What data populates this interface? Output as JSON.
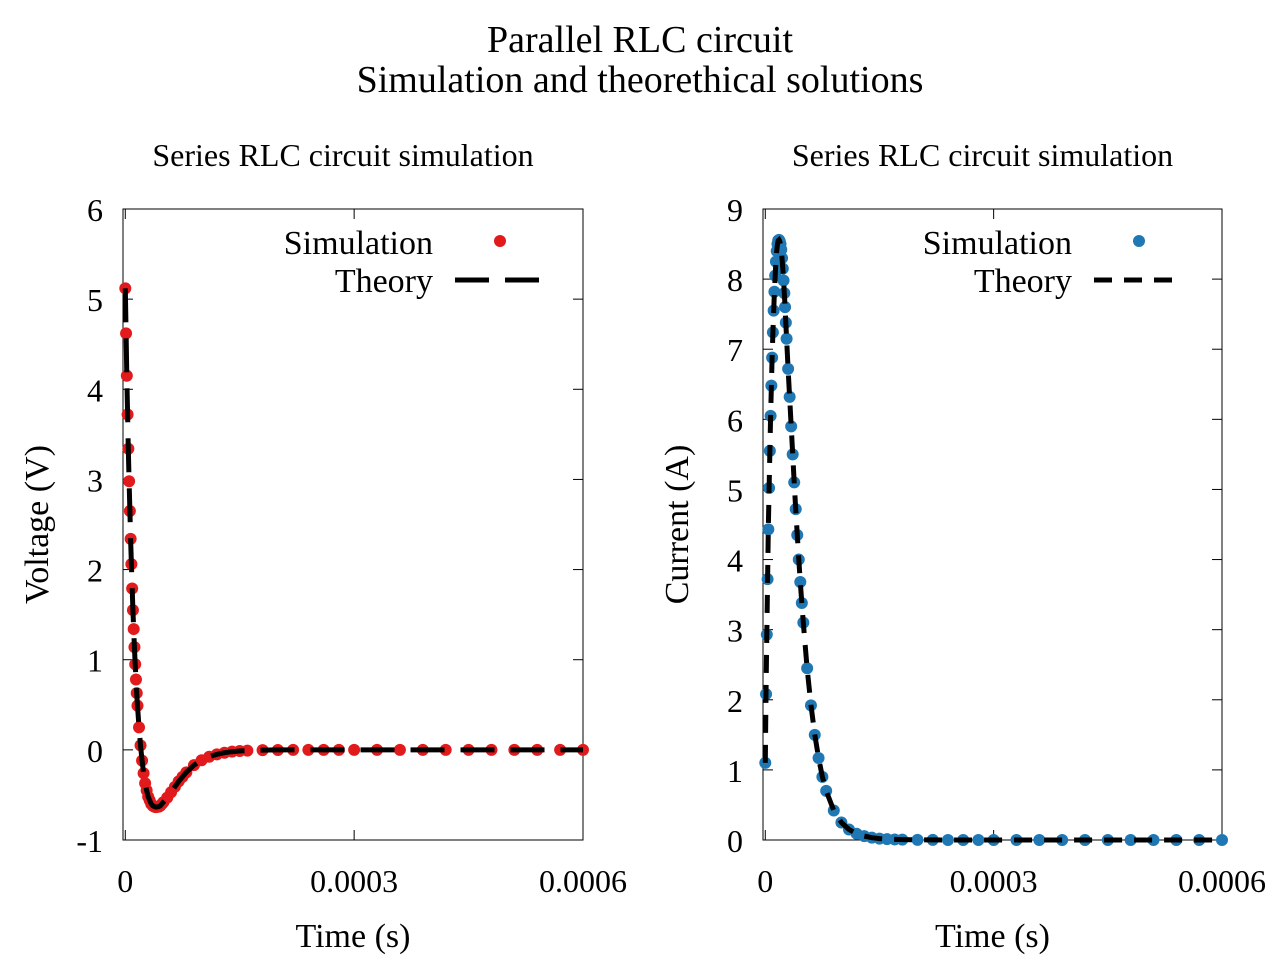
{
  "figure": {
    "title_line1": "Parallel RLC circuit",
    "title_line2": "Simulation and theorethical solutions"
  },
  "chart_data": [
    {
      "type": "line",
      "title": "Series RLC circuit simulation",
      "xlabel": "Time (s)",
      "ylabel": "Voltage (V)",
      "xlim": [
        -3e-06,
        0.0006
      ],
      "ylim": [
        -1,
        6
      ],
      "xticks": [
        0,
        0.0003,
        0.0006
      ],
      "xtick_labels": [
        "0",
        "0.0003",
        "0.0006"
      ],
      "yticks": [
        -1,
        0,
        1,
        2,
        3,
        4,
        5,
        6
      ],
      "ytick_labels": [
        "-1",
        "0",
        "1",
        "2",
        "3",
        "4",
        "5",
        "6"
      ],
      "grid": false,
      "legend_position": "top-right",
      "series": [
        {
          "name": "Simulation",
          "style": "points",
          "color": "#e31a1c",
          "x": [
            0,
            1e-06,
            2e-06,
            3e-06,
            4e-06,
            5e-06,
            6e-06,
            7e-06,
            8e-06,
            9e-06,
            1e-05,
            1.1e-05,
            1.2e-05,
            1.3e-05,
            1.4e-05,
            1.5e-05,
            1.6e-05,
            1.8e-05,
            2e-05,
            2.2e-05,
            2.4e-05,
            2.6e-05,
            2.8e-05,
            3e-05,
            3.2e-05,
            3.4e-05,
            3.6e-05,
            3.8e-05,
            4e-05,
            4.2e-05,
            4.4e-05,
            4.6e-05,
            4.8e-05,
            5e-05,
            5.5e-05,
            6e-05,
            6.5e-05,
            7e-05,
            7.5e-05,
            8e-05,
            9e-05,
            0.0001,
            0.00011,
            0.00012,
            0.00013,
            0.00014,
            0.00015,
            0.00016,
            0.00018,
            0.0002,
            0.00022,
            0.00024,
            0.00026,
            0.00028,
            0.0003,
            0.00033,
            0.00036,
            0.00039,
            0.00042,
            0.00045,
            0.00048,
            0.00051,
            0.00054,
            0.00057,
            0.0006
          ],
          "y": [
            5.12,
            4.62,
            4.15,
            3.72,
            3.34,
            2.98,
            2.65,
            2.34,
            2.06,
            1.79,
            1.55,
            1.34,
            1.14,
            0.95,
            0.78,
            0.63,
            0.49,
            0.25,
            0.05,
            -0.12,
            -0.26,
            -0.37,
            -0.45,
            -0.52,
            -0.56,
            -0.6,
            -0.62,
            -0.63,
            -0.635,
            -0.633,
            -0.63,
            -0.62,
            -0.6,
            -0.58,
            -0.53,
            -0.47,
            -0.41,
            -0.35,
            -0.3,
            -0.25,
            -0.17,
            -0.115,
            -0.076,
            -0.05,
            -0.032,
            -0.02,
            -0.013,
            -0.008,
            -0.003,
            -0.001,
            0,
            0,
            0,
            0,
            0,
            0,
            0,
            0,
            0,
            0,
            0,
            0,
            0,
            0,
            0
          ]
        },
        {
          "name": "Theory",
          "style": "dashed-line",
          "color": "#000000",
          "x": [
            0,
            1e-06,
            2e-06,
            3e-06,
            4e-06,
            5e-06,
            6e-06,
            7e-06,
            8e-06,
            9e-06,
            1e-05,
            1.1e-05,
            1.2e-05,
            1.3e-05,
            1.4e-05,
            1.5e-05,
            1.6e-05,
            1.8e-05,
            2e-05,
            2.2e-05,
            2.4e-05,
            2.6e-05,
            2.8e-05,
            3e-05,
            3.2e-05,
            3.4e-05,
            3.6e-05,
            3.8e-05,
            4e-05,
            4.2e-05,
            4.4e-05,
            4.6e-05,
            4.8e-05,
            5e-05,
            5.5e-05,
            6e-05,
            6.5e-05,
            7e-05,
            7.5e-05,
            8e-05,
            9e-05,
            0.0001,
            0.00011,
            0.00012,
            0.00013,
            0.00014,
            0.00015,
            0.00016,
            0.00018,
            0.0002,
            0.00022,
            0.00024,
            0.00026,
            0.00028,
            0.0003,
            0.00033,
            0.00036,
            0.00039,
            0.00042,
            0.00045,
            0.00048,
            0.00051,
            0.00054,
            0.00057,
            0.0006
          ],
          "y": [
            5.12,
            4.62,
            4.15,
            3.72,
            3.34,
            2.98,
            2.65,
            2.34,
            2.06,
            1.79,
            1.55,
            1.34,
            1.14,
            0.95,
            0.78,
            0.63,
            0.49,
            0.25,
            0.05,
            -0.12,
            -0.26,
            -0.37,
            -0.45,
            -0.52,
            -0.56,
            -0.6,
            -0.62,
            -0.63,
            -0.635,
            -0.633,
            -0.63,
            -0.62,
            -0.6,
            -0.58,
            -0.53,
            -0.47,
            -0.41,
            -0.35,
            -0.3,
            -0.25,
            -0.17,
            -0.115,
            -0.076,
            -0.05,
            -0.032,
            -0.02,
            -0.013,
            -0.008,
            -0.003,
            -0.001,
            0,
            0,
            0,
            0,
            0,
            0,
            0,
            0,
            0,
            0,
            0,
            0,
            0,
            0,
            0
          ]
        }
      ]
    },
    {
      "type": "line",
      "title": "Series RLC circuit simulation",
      "xlabel": "Time (s)",
      "ylabel": "Current (A)",
      "xlim": [
        -3e-06,
        0.0006
      ],
      "ylim": [
        0,
        9
      ],
      "xticks": [
        0,
        0.0003,
        0.0006
      ],
      "xtick_labels": [
        "0",
        "0.0003",
        "0.0006"
      ],
      "yticks": [
        0,
        1,
        2,
        3,
        4,
        5,
        6,
        7,
        8,
        9
      ],
      "ytick_labels": [
        "0",
        "1",
        "2",
        "3",
        "4",
        "5",
        "6",
        "7",
        "8",
        "9"
      ],
      "grid": false,
      "legend_position": "top-right",
      "series": [
        {
          "name": "Simulation",
          "style": "points",
          "color": "#1f78b4",
          "x": [
            0,
            1e-06,
            2e-06,
            3e-06,
            4e-06,
            5e-06,
            6e-06,
            7e-06,
            8e-06,
            9e-06,
            1e-05,
            1.1e-05,
            1.2e-05,
            1.3e-05,
            1.4e-05,
            1.5e-05,
            1.6e-05,
            1.7e-05,
            1.8e-05,
            1.9e-05,
            2e-05,
            2.1e-05,
            2.2e-05,
            2.3e-05,
            2.4e-05,
            2.5e-05,
            2.6e-05,
            2.7e-05,
            2.8e-05,
            3e-05,
            3.2e-05,
            3.4e-05,
            3.6e-05,
            3.8e-05,
            4e-05,
            4.2e-05,
            4.4e-05,
            4.6e-05,
            4.8e-05,
            5e-05,
            5.5e-05,
            6e-05,
            6.5e-05,
            7e-05,
            7.5e-05,
            8e-05,
            9e-05,
            0.0001,
            0.00011,
            0.00012,
            0.00013,
            0.00014,
            0.00015,
            0.00016,
            0.00017,
            0.00018,
            0.0002,
            0.00022,
            0.00024,
            0.00026,
            0.00028,
            0.0003,
            0.00033,
            0.00036,
            0.00039,
            0.00042,
            0.00045,
            0.00048,
            0.00051,
            0.00054,
            0.00057,
            0.0006
          ],
          "y": [
            1.1,
            2.08,
            2.93,
            3.72,
            4.43,
            5.02,
            5.55,
            6.05,
            6.48,
            6.88,
            7.24,
            7.55,
            7.82,
            8.05,
            8.25,
            8.4,
            8.5,
            8.55,
            8.56,
            8.54,
            8.5,
            8.42,
            8.3,
            8.15,
            7.98,
            7.8,
            7.6,
            7.38,
            7.15,
            6.72,
            6.32,
            5.9,
            5.5,
            5.1,
            4.72,
            4.35,
            4.0,
            3.68,
            3.38,
            3.1,
            2.45,
            1.92,
            1.5,
            1.17,
            0.9,
            0.7,
            0.42,
            0.25,
            0.15,
            0.09,
            0.055,
            0.033,
            0.02,
            0.012,
            0.008,
            0.005,
            0.002,
            0.001,
            0,
            0,
            0,
            0,
            0,
            0,
            0,
            0,
            0,
            0,
            0,
            0,
            0,
            0
          ]
        },
        {
          "name": "Theory",
          "style": "dashed-line",
          "color": "#000000",
          "x": [
            0,
            1e-06,
            2e-06,
            3e-06,
            4e-06,
            5e-06,
            6e-06,
            7e-06,
            8e-06,
            9e-06,
            1e-05,
            1.1e-05,
            1.2e-05,
            1.3e-05,
            1.4e-05,
            1.5e-05,
            1.6e-05,
            1.7e-05,
            1.8e-05,
            1.9e-05,
            2e-05,
            2.1e-05,
            2.2e-05,
            2.3e-05,
            2.4e-05,
            2.5e-05,
            2.6e-05,
            2.7e-05,
            2.8e-05,
            3e-05,
            3.2e-05,
            3.4e-05,
            3.6e-05,
            3.8e-05,
            4e-05,
            4.2e-05,
            4.4e-05,
            4.6e-05,
            4.8e-05,
            5e-05,
            5.5e-05,
            6e-05,
            6.5e-05,
            7e-05,
            7.5e-05,
            8e-05,
            9e-05,
            0.0001,
            0.00011,
            0.00012,
            0.00013,
            0.00014,
            0.00015,
            0.00016,
            0.00017,
            0.00018,
            0.0002,
            0.00022,
            0.00024,
            0.00026,
            0.00028,
            0.0003,
            0.00033,
            0.00036,
            0.00039,
            0.00042,
            0.00045,
            0.00048,
            0.00051,
            0.00054,
            0.00057,
            0.0006
          ],
          "y": [
            1.1,
            2.08,
            2.93,
            3.72,
            4.43,
            5.02,
            5.55,
            6.05,
            6.48,
            6.88,
            7.24,
            7.55,
            7.82,
            8.05,
            8.25,
            8.4,
            8.5,
            8.55,
            8.56,
            8.54,
            8.5,
            8.42,
            8.3,
            8.15,
            7.98,
            7.8,
            7.6,
            7.38,
            7.15,
            6.72,
            6.32,
            5.9,
            5.5,
            5.1,
            4.72,
            4.35,
            4.0,
            3.68,
            3.38,
            3.1,
            2.45,
            1.92,
            1.5,
            1.17,
            0.9,
            0.7,
            0.42,
            0.25,
            0.15,
            0.09,
            0.055,
            0.033,
            0.02,
            0.012,
            0.008,
            0.005,
            0.002,
            0.001,
            0,
            0,
            0,
            0,
            0,
            0,
            0,
            0,
            0,
            0,
            0,
            0,
            0,
            0
          ]
        }
      ]
    }
  ]
}
